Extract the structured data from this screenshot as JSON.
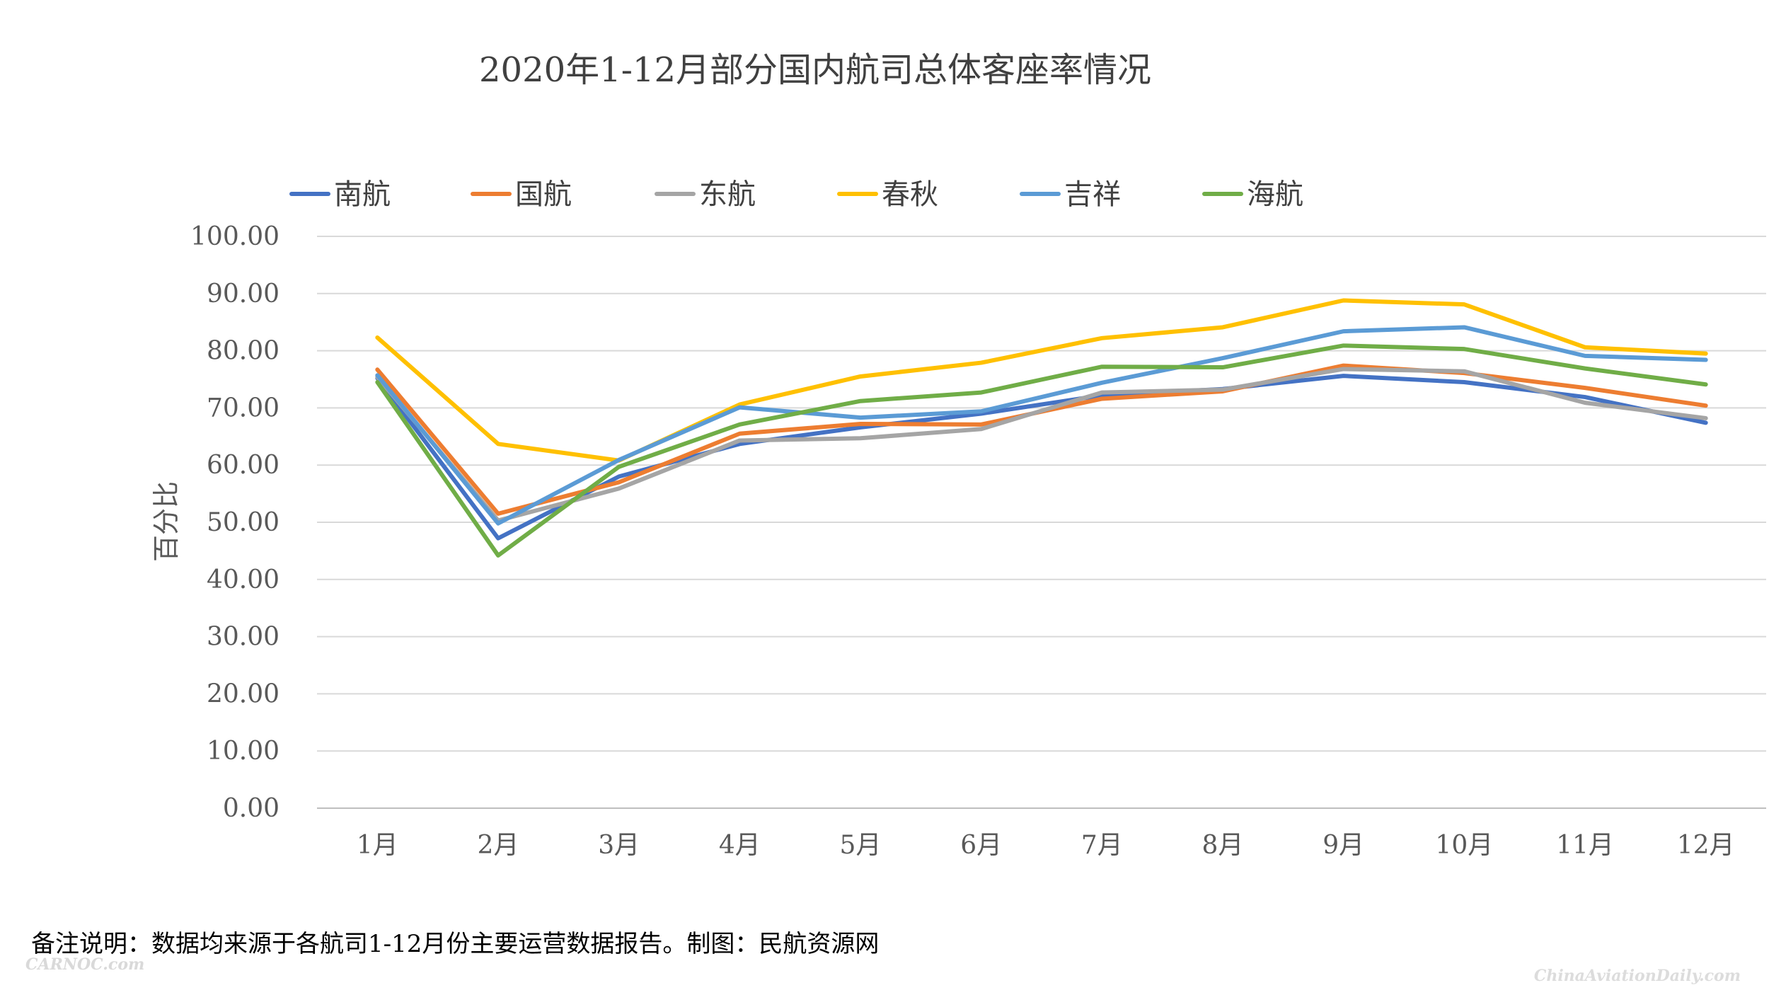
{
  "chart_data": {
    "type": "line",
    "title": "2020年1-12月部分国内航司总体客座率情况",
    "ylabel": "百分比",
    "xlabel": "",
    "categories": [
      "1月",
      "2月",
      "3月",
      "4月",
      "5月",
      "6月",
      "7月",
      "8月",
      "9月",
      "10月",
      "11月",
      "12月"
    ],
    "ylim": [
      0,
      100
    ],
    "yticks": [
      "100.00",
      "90.00",
      "80.00",
      "70.00",
      "60.00",
      "50.00",
      "40.00",
      "30.00",
      "20.00",
      "10.00",
      "0.00"
    ],
    "ytick_values": [
      100,
      90,
      80,
      70,
      60,
      50,
      40,
      30,
      20,
      10,
      0
    ],
    "grid": true,
    "legend_position": "top",
    "series": [
      {
        "name": "南航",
        "color": "#4472C4",
        "values": [
          75.2,
          47.2,
          58.0,
          63.7,
          66.6,
          69.0,
          72.2,
          73.3,
          75.6,
          74.5,
          71.9,
          67.4
        ]
      },
      {
        "name": "国航",
        "color": "#ED7D31",
        "values": [
          76.7,
          51.5,
          57.0,
          65.5,
          67.2,
          67.1,
          71.6,
          72.9,
          77.4,
          76.1,
          73.5,
          70.4
        ]
      },
      {
        "name": "东航",
        "color": "#A5A5A5",
        "values": [
          75.4,
          50.3,
          55.9,
          64.3,
          64.7,
          66.3,
          72.7,
          73.2,
          76.8,
          76.4,
          70.9,
          68.2
        ]
      },
      {
        "name": "春秋",
        "color": "#FFC000",
        "values": [
          82.3,
          63.7,
          60.8,
          70.6,
          75.5,
          77.9,
          82.2,
          84.1,
          88.8,
          88.1,
          80.6,
          79.5
        ]
      },
      {
        "name": "吉祥",
        "color": "#5B9BD5",
        "values": [
          75.7,
          49.8,
          60.9,
          70.1,
          68.3,
          69.4,
          74.4,
          78.7,
          83.4,
          84.1,
          79.1,
          78.4
        ]
      },
      {
        "name": "海航",
        "color": "#70AD47",
        "values": [
          74.5,
          44.2,
          59.7,
          67.1,
          71.2,
          72.7,
          77.2,
          77.1,
          80.9,
          80.3,
          76.9,
          74.1
        ]
      }
    ]
  },
  "note": "备注说明：数据均来源于各航司1-12月份主要运营数据报告。制图：民航资源网",
  "watermark_left": "CARNOC.com",
  "watermark_right": "ChinaAviationDaily.com"
}
